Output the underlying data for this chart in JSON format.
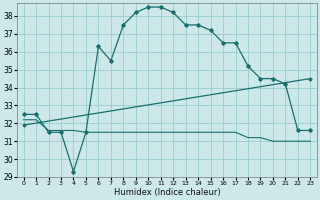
{
  "title": "",
  "xlabel": "Humidex (Indice chaleur)",
  "bg_color": "#cce8e8",
  "grid_color": "#99cccc",
  "line_color": "#1a6e6e",
  "xlim": [
    -0.5,
    23.5
  ],
  "ylim": [
    29,
    38.7
  ],
  "yticks": [
    29,
    30,
    31,
    32,
    33,
    34,
    35,
    36,
    37,
    38
  ],
  "xticks": [
    0,
    1,
    2,
    3,
    4,
    5,
    6,
    7,
    8,
    9,
    10,
    11,
    12,
    13,
    14,
    15,
    16,
    17,
    18,
    19,
    20,
    21,
    22,
    23
  ],
  "curve1_x": [
    0,
    1,
    2,
    3,
    4,
    5,
    6,
    7,
    8,
    9,
    10,
    11,
    12,
    13,
    14,
    15,
    16,
    17,
    18,
    19,
    20,
    21,
    22,
    23
  ],
  "curve1_y": [
    32.5,
    32.5,
    31.5,
    31.5,
    29.3,
    31.5,
    36.3,
    35.5,
    37.5,
    38.2,
    38.5,
    38.5,
    38.2,
    37.5,
    37.5,
    37.2,
    36.5,
    36.5,
    35.2,
    34.5,
    34.5,
    34.2,
    31.6,
    31.6
  ],
  "curve2_x": [
    0,
    1,
    2,
    3,
    4,
    5,
    6,
    7,
    8,
    9,
    10,
    11,
    12,
    13,
    14,
    15,
    16,
    17,
    18,
    19,
    20,
    21,
    22,
    23
  ],
  "curve2_y": [
    32.2,
    32.2,
    31.6,
    31.6,
    31.6,
    31.5,
    31.5,
    31.5,
    31.5,
    31.5,
    31.5,
    31.5,
    31.5,
    31.5,
    31.5,
    31.5,
    31.5,
    31.5,
    31.2,
    31.2,
    31.0,
    31.0,
    31.0,
    31.0
  ],
  "curve3_x": [
    0,
    23
  ],
  "curve3_y": [
    31.9,
    34.5
  ],
  "marker_x1": [
    0,
    1,
    2,
    3,
    4,
    5,
    6,
    7,
    8,
    9,
    10,
    11,
    12,
    13,
    14,
    15,
    16,
    17,
    18,
    19,
    20,
    21,
    22,
    23
  ],
  "marker_y1": [
    32.5,
    32.5,
    31.5,
    31.5,
    29.3,
    31.5,
    36.3,
    35.5,
    37.5,
    38.2,
    38.5,
    38.5,
    38.2,
    37.5,
    37.5,
    37.2,
    36.5,
    36.5,
    35.2,
    34.5,
    34.5,
    34.2,
    31.6,
    31.6
  ],
  "marker_x3": [
    0,
    2,
    4,
    6,
    8,
    10,
    12,
    14,
    16,
    18,
    20,
    22,
    23
  ],
  "marker_y3": [
    31.9,
    32.1,
    32.35,
    32.6,
    32.85,
    33.1,
    33.35,
    33.6,
    33.85,
    34.1,
    34.25,
    34.4,
    34.5
  ]
}
